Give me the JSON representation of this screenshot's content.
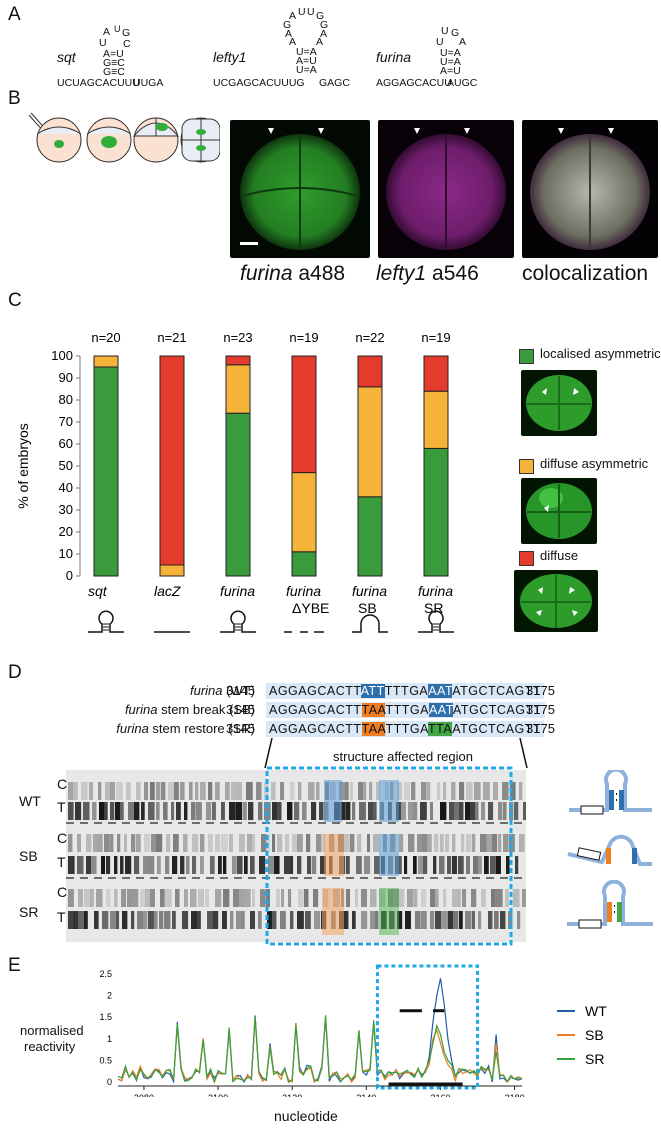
{
  "panels": {
    "A": "A",
    "B": "B",
    "C": "C",
    "D": "D",
    "E": "E"
  },
  "panelA": {
    "sqt": {
      "name": "sqt",
      "loop_top": "A U G",
      "loop_side_l": "U",
      "loop_side_r": "C",
      "pairs": [
        "A=U",
        "G≡C",
        "G≡C"
      ],
      "base": "UCUAGCACUUU   UUGA"
    },
    "lefty1": {
      "name": "lefty1",
      "loop_top": "A U U G",
      "loop_l": [
        "G",
        "A",
        "A"
      ],
      "loop_r": [
        "G",
        "A",
        "A"
      ],
      "pairs": [
        "U=A",
        "A=U",
        "U=A"
      ],
      "base": "UCGAGCACUUUG   GAGC"
    },
    "furina": {
      "name": "furina",
      "loop_top": "U G",
      "loop_side_l": "U",
      "loop_side_r": "A",
      "pairs": [
        "U=A",
        "U=A",
        "A=U"
      ],
      "base": "AGGAGCACUU   AUGC"
    }
  },
  "panelB": {
    "labels": [
      {
        "italic": "furina",
        "rest": " a488"
      },
      {
        "italic": "lefty1",
        "rest": " a546"
      },
      {
        "italic": "",
        "rest": "colocalization"
      }
    ]
  },
  "chart_data": {
    "type": "bar",
    "stacked": true,
    "ylabel": "% of embryos",
    "ylim": [
      0,
      100
    ],
    "yticks": [
      0,
      10,
      20,
      30,
      40,
      50,
      60,
      70,
      80,
      90,
      100
    ],
    "categories": [
      "sqt",
      "lacZ",
      "furina",
      "furina ΔYBE",
      "furina SB",
      "furina SR"
    ],
    "category_lines": [
      [
        "sqt"
      ],
      [
        "lacZ"
      ],
      [
        "furina"
      ],
      [
        "furina",
        "ΔYBE"
      ],
      [
        "furina",
        "SB"
      ],
      [
        "furina",
        "SR"
      ]
    ],
    "n_labels": [
      "n=20",
      "n=21",
      "n=23",
      "n=19",
      "n=22",
      "n=19"
    ],
    "series": [
      {
        "name": "localised asymmetric",
        "color": "#3a9a3c",
        "values": [
          95,
          0,
          74,
          11,
          36,
          58
        ]
      },
      {
        "name": "diffuse asymmetric",
        "color": "#f6b33a",
        "values": [
          5,
          5,
          22,
          36,
          50,
          26
        ]
      },
      {
        "name": "diffuse",
        "color": "#e53b2c",
        "values": [
          0,
          95,
          4,
          53,
          14,
          16
        ]
      }
    ]
  },
  "panelD": {
    "rows": [
      {
        "label_it": "furina",
        "label_rest": " (WT)",
        "start": "3145",
        "end": "3175",
        "seg": [
          "AGGAGCACTT",
          "ATT",
          "TTTGA",
          "AAT",
          "ATGCTCAGTT"
        ],
        "cls": [
          "",
          "hl-blue",
          "",
          "hl-blue",
          ""
        ]
      },
      {
        "label_it": "furina",
        "label_rest": " stem break (SB)",
        "start": "3145",
        "end": "3175",
        "seg": [
          "AGGAGCACTT",
          "TAA",
          "TTTGA",
          "AAT",
          "ATGCTCAGTT"
        ],
        "cls": [
          "",
          "hl-orange",
          "",
          "hl-blue",
          ""
        ]
      },
      {
        "label_it": "furina",
        "label_rest": " stem restore (SR)",
        "start": "3145",
        "end": "3175",
        "seg": [
          "AGGAGCACTT",
          "TAA",
          "TTTGA",
          "TTA",
          "ATGCTCAGTT"
        ],
        "cls": [
          "",
          "hl-orange",
          "",
          "hl-green",
          ""
        ]
      }
    ],
    "region_label": "structure affected region",
    "gel_groups": [
      "WT",
      "SB",
      "SR"
    ],
    "lanes": [
      "C",
      "T"
    ]
  },
  "panelE": {
    "ylabel_1": "normalised",
    "ylabel_2": "reactivity",
    "xlabel": "nucleotide",
    "yticks": [
      "0",
      "0.5",
      "1",
      "1.5",
      "2",
      "2.5"
    ],
    "xticks": [
      "3080",
      "3100",
      "3120",
      "3140",
      "3160",
      "3180"
    ],
    "legend": [
      {
        "name": "WT",
        "color": "#1f5fa8"
      },
      {
        "name": "SB",
        "color": "#f07c22"
      },
      {
        "name": "SR",
        "color": "#3aa23c"
      }
    ]
  }
}
